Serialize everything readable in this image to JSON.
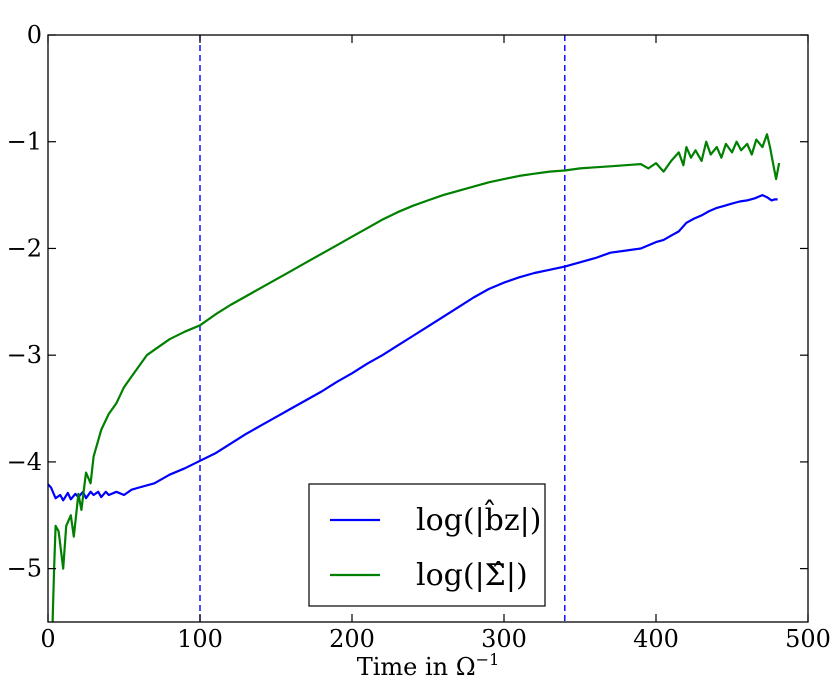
{
  "chart_data": {
    "type": "line",
    "title": "",
    "xlabel": "Time in Ω",
    "xlabel_sup": "−1",
    "ylabel": "",
    "xlim": [
      0,
      500
    ],
    "ylim": [
      -5.5,
      0
    ],
    "xticks": [
      {
        "value": 0,
        "label": "0"
      },
      {
        "value": 100,
        "label": "100"
      },
      {
        "value": 200,
        "label": "200"
      },
      {
        "value": 300,
        "label": "300"
      },
      {
        "value": 400,
        "label": "400"
      },
      {
        "value": 500,
        "label": "500"
      }
    ],
    "yticks": [
      {
        "value": 0,
        "label": "0"
      },
      {
        "value": -1,
        "label": "−1"
      },
      {
        "value": -2,
        "label": "−2"
      },
      {
        "value": -3,
        "label": "−3"
      },
      {
        "value": -4,
        "label": "−4"
      },
      {
        "value": -5,
        "label": "−5"
      }
    ],
    "vlines": [
      {
        "x": 100,
        "style": "dashed",
        "color": "#0000ff"
      },
      {
        "x": 340,
        "style": "dashed",
        "color": "#0000ff"
      }
    ],
    "legend": {
      "position": "bottom-center"
    },
    "series": [
      {
        "name": "log(|b̂z|)",
        "color": "#0000ff",
        "x": [
          0,
          2,
          5,
          8,
          10,
          13,
          15,
          18,
          20,
          23,
          25,
          28,
          30,
          33,
          35,
          38,
          40,
          45,
          50,
          55,
          60,
          70,
          80,
          90,
          100,
          110,
          120,
          130,
          140,
          150,
          160,
          170,
          180,
          190,
          200,
          210,
          220,
          230,
          240,
          250,
          260,
          270,
          280,
          290,
          300,
          310,
          320,
          330,
          340,
          350,
          360,
          370,
          380,
          390,
          400,
          405,
          410,
          415,
          420,
          425,
          430,
          435,
          440,
          445,
          450,
          455,
          460,
          465,
          470,
          473,
          476,
          478,
          480
        ],
        "y": [
          -4.21,
          -4.24,
          -4.34,
          -4.31,
          -4.36,
          -4.29,
          -4.35,
          -4.3,
          -4.33,
          -4.28,
          -4.34,
          -4.28,
          -4.31,
          -4.28,
          -4.33,
          -4.28,
          -4.31,
          -4.28,
          -4.31,
          -4.26,
          -4.24,
          -4.2,
          -4.12,
          -4.06,
          -3.99,
          -3.92,
          -3.83,
          -3.74,
          -3.66,
          -3.58,
          -3.5,
          -3.42,
          -3.34,
          -3.25,
          -3.17,
          -3.08,
          -3.0,
          -2.91,
          -2.82,
          -2.73,
          -2.64,
          -2.55,
          -2.46,
          -2.38,
          -2.32,
          -2.27,
          -2.23,
          -2.2,
          -2.17,
          -2.13,
          -2.09,
          -2.04,
          -2.02,
          -2.0,
          -1.94,
          -1.92,
          -1.88,
          -1.84,
          -1.76,
          -1.72,
          -1.69,
          -1.65,
          -1.62,
          -1.6,
          -1.58,
          -1.56,
          -1.55,
          -1.53,
          -1.5,
          -1.52,
          -1.55,
          -1.54,
          -1.54
        ]
      },
      {
        "name": "log(|Σ̂|)",
        "color": "#008000",
        "x": [
          3,
          4,
          5,
          7,
          10,
          12,
          15,
          17,
          20,
          22,
          25,
          28,
          30,
          35,
          40,
          45,
          50,
          55,
          60,
          65,
          70,
          80,
          90,
          100,
          110,
          120,
          130,
          140,
          150,
          160,
          170,
          180,
          190,
          200,
          210,
          220,
          230,
          240,
          250,
          260,
          270,
          280,
          290,
          300,
          310,
          320,
          330,
          340,
          350,
          360,
          370,
          380,
          390,
          395,
          400,
          405,
          410,
          415,
          418,
          420,
          423,
          426,
          430,
          433,
          436,
          440,
          443,
          446,
          450,
          453,
          456,
          460,
          463,
          466,
          470,
          473,
          475,
          477,
          479,
          481
        ],
        "y": [
          -5.5,
          -5.0,
          -4.6,
          -4.65,
          -5.0,
          -4.6,
          -4.5,
          -4.7,
          -4.3,
          -4.45,
          -4.1,
          -4.2,
          -3.95,
          -3.7,
          -3.55,
          -3.45,
          -3.3,
          -3.2,
          -3.1,
          -3.0,
          -2.95,
          -2.85,
          -2.78,
          -2.72,
          -2.62,
          -2.53,
          -2.45,
          -2.37,
          -2.29,
          -2.21,
          -2.13,
          -2.05,
          -1.97,
          -1.89,
          -1.81,
          -1.73,
          -1.66,
          -1.6,
          -1.55,
          -1.5,
          -1.46,
          -1.42,
          -1.38,
          -1.35,
          -1.32,
          -1.3,
          -1.28,
          -1.27,
          -1.25,
          -1.24,
          -1.23,
          -1.22,
          -1.21,
          -1.25,
          -1.2,
          -1.28,
          -1.18,
          -1.1,
          -1.22,
          -1.05,
          -1.15,
          -1.08,
          -1.18,
          -1.0,
          -1.12,
          -1.05,
          -1.15,
          -1.02,
          -1.1,
          -1.0,
          -1.08,
          -1.02,
          -1.12,
          -0.98,
          -1.05,
          -0.93,
          -1.05,
          -1.2,
          -1.35,
          -1.2
        ]
      }
    ]
  }
}
